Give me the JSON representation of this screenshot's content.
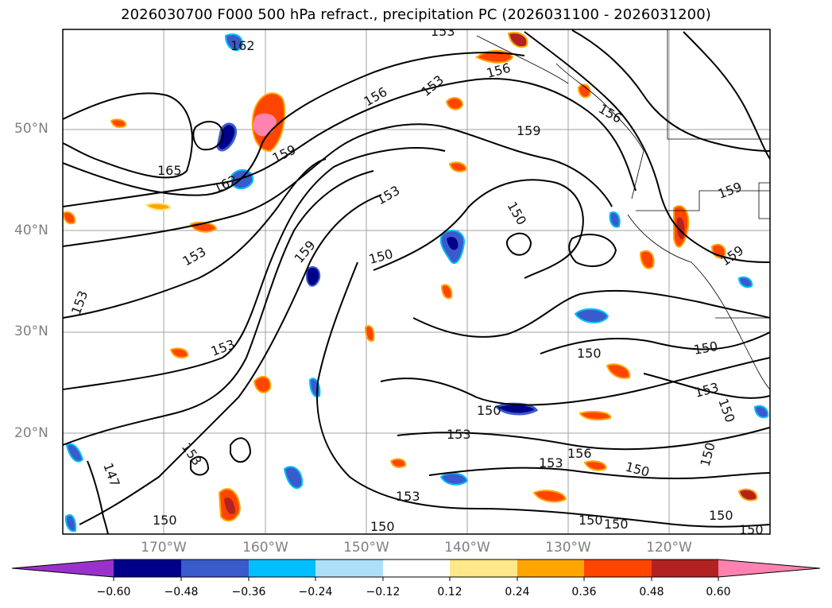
{
  "title": "2026030700 F000 500 hPa refract., precipitation PC (2026031100 - 2026031200)",
  "map": {
    "lat_labels": [
      "50°N",
      "40°N",
      "30°N",
      "20°N"
    ],
    "lon_labels": [
      "170°W",
      "160°W",
      "150°W",
      "140°W",
      "130°W",
      "120°W"
    ],
    "gridlines": true,
    "contour_color": "#000000"
  },
  "contour_labels": [
    "162",
    "165",
    "162",
    "159",
    "156",
    "153",
    "156",
    "153",
    "159",
    "156",
    "153",
    "150",
    "159",
    "159",
    "153",
    "150",
    "159",
    "153",
    "153",
    "150",
    "150",
    "153",
    "150",
    "150",
    "153",
    "153",
    "156",
    "150",
    "150",
    "147",
    "153",
    "153",
    "150",
    "150",
    "150",
    "150",
    "150",
    "150"
  ],
  "colorbar": {
    "extend": "both",
    "ticks": [
      "−0.60",
      "−0.48",
      "−0.36",
      "−0.24",
      "−0.12",
      "0.12",
      "0.24",
      "0.36",
      "0.48",
      "0.60"
    ],
    "colors": {
      "below_min": "#9932CC",
      "bins": [
        "#00008B",
        "#3A5BCC",
        "#00BFFF",
        "#ADE0F8",
        "#FFFFFF",
        "#FFE88A",
        "#FFA500",
        "#FF4500",
        "#B22222"
      ],
      "above_max": "#FF82B0"
    }
  }
}
